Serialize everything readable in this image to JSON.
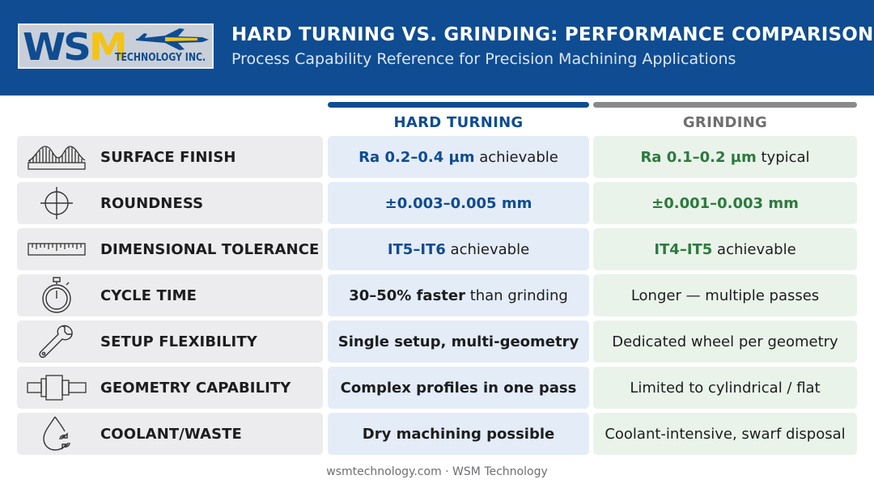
{
  "header": {
    "logo_letters_a": "WS",
    "logo_letters_b": "M",
    "logo_company": "TECHNOLOGY INC.",
    "title": "HARD TURNING VS. GRINDING: PERFORMANCE COMPARISON",
    "subtitle": "Process Capability Reference for Precision Machining Applications",
    "colors": {
      "header_bg": "#0f4c91",
      "logo_yellow": "#f3c316"
    }
  },
  "columns": {
    "hard_turning": "HARD TURNING",
    "grinding": "GRINDING",
    "colors": {
      "hard_turning": "#0f4c91",
      "grinding": "#8a8a8a",
      "grinding_accent": "#2d7a3e"
    }
  },
  "rows": [
    {
      "icon": "surface-profile-icon",
      "label": "SURFACE FINISH",
      "hard_turning": {
        "em": "Ra 0.2–0.4 µm",
        "rest": " achievable"
      },
      "grinding": {
        "em": "Ra 0.1–0.2 µm",
        "rest": " typical"
      }
    },
    {
      "icon": "crosshair-icon",
      "label": "ROUNDNESS",
      "hard_turning": {
        "em": "±0.003–0.005 mm",
        "rest": ""
      },
      "grinding": {
        "em": "±0.001–0.003 mm",
        "rest": ""
      }
    },
    {
      "icon": "ruler-icon",
      "label": "DIMENSIONAL TOLERANCE",
      "hard_turning": {
        "em": "IT5–IT6",
        "rest": " achievable"
      },
      "grinding": {
        "em": "IT4–IT5",
        "rest": " achievable"
      }
    },
    {
      "icon": "stopwatch-icon",
      "label": "CYCLE TIME",
      "hard_turning": {
        "em": "30–50% faster",
        "rest": " than grinding"
      },
      "grinding": {
        "em": "",
        "rest": "Longer — multiple passes"
      }
    },
    {
      "icon": "wrench-icon",
      "label": "SETUP FLEXIBILITY",
      "hard_turning": {
        "em": "Single setup, multi-geometry",
        "rest": ""
      },
      "grinding": {
        "em": "",
        "rest": "Dedicated wheel per geometry"
      }
    },
    {
      "icon": "stepped-shaft-icon",
      "label": "GEOMETRY CAPABILITY",
      "hard_turning": {
        "em": "Complex profiles in one pass",
        "rest": ""
      },
      "grinding": {
        "em": "",
        "rest": "Limited to cylindrical / flat"
      }
    },
    {
      "icon": "coolant-drop-icon",
      "label": "COOLANT/WASTE",
      "hard_turning": {
        "em": "Dry machining possible",
        "rest": ""
      },
      "grinding": {
        "em": "",
        "rest": "Coolant-intensive, swarf disposal"
      }
    }
  ],
  "footer": "wsmtechnology.com · WSM Technology"
}
